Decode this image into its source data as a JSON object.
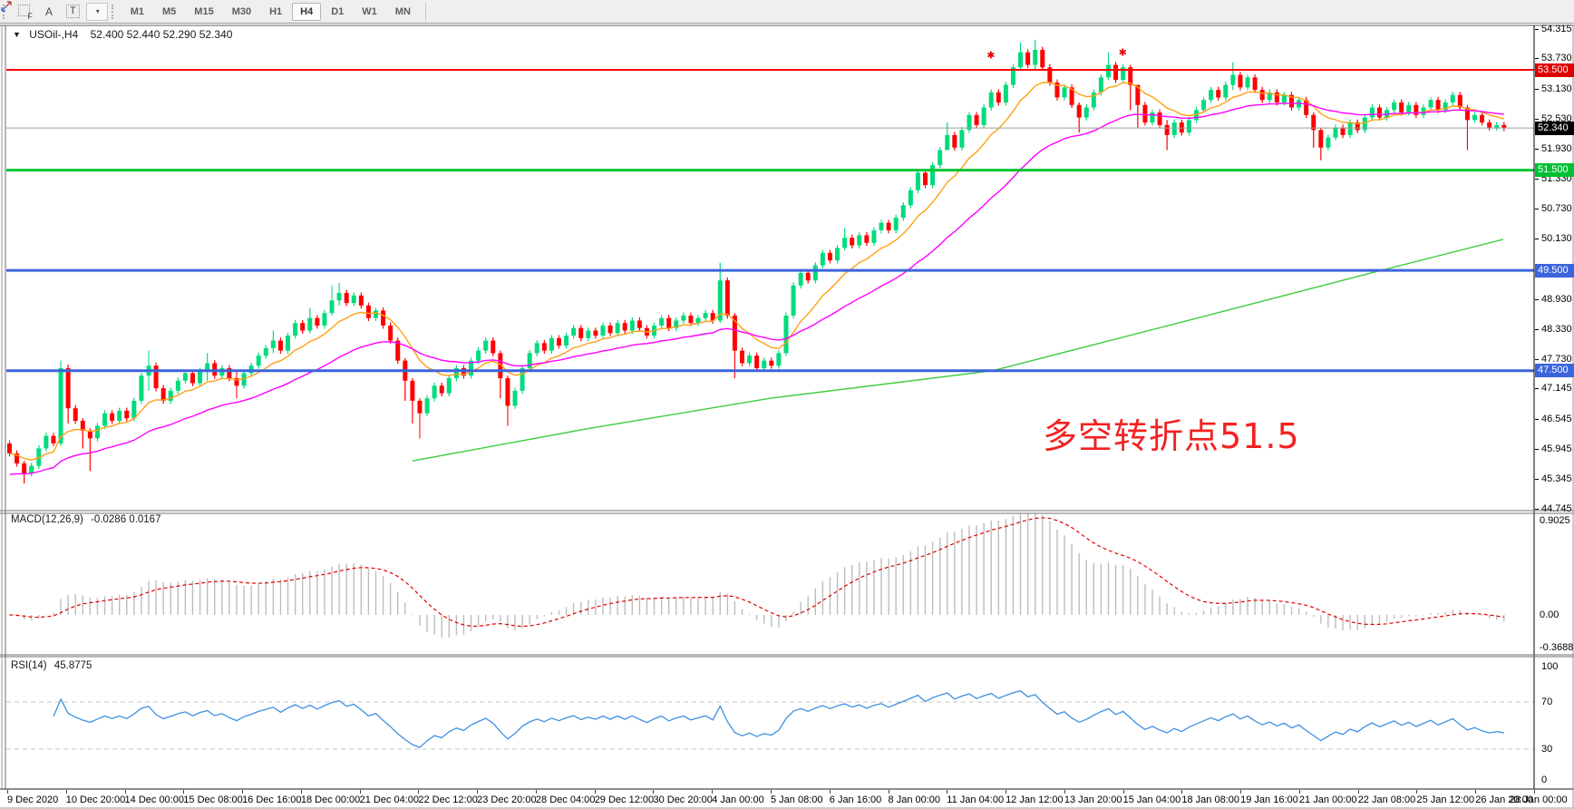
{
  "toolbar": {
    "tools": {
      "grid_label": "F",
      "a_label": "A",
      "t_label": "T",
      "arrows_caret": "▾"
    },
    "timeframes": [
      "M1",
      "M5",
      "M15",
      "M30",
      "H1",
      "H4",
      "D1",
      "W1",
      "MN"
    ],
    "active": "H4"
  },
  "chart": {
    "collapse_icon": "▼",
    "symbol_period": "USOil-,H4",
    "quotes": "52.400 52.440 52.290 52.340",
    "levels": [
      {
        "price": 53.5,
        "color": "#FF0000",
        "w": 2
      },
      {
        "price": 51.5,
        "color": "#00C432",
        "w": 3
      },
      {
        "price": 49.5,
        "color": "#3C64DC",
        "w": 3
      },
      {
        "price": 47.5,
        "color": "#3C64DC",
        "w": 3
      }
    ],
    "current_price": {
      "price": 52.34,
      "color": "#9A9A9A"
    }
  },
  "annotation": {
    "text": "多空转折点51.5",
    "color": "#F42121"
  },
  "price_axis": {
    "ticks": [
      54.315,
      53.73,
      53.13,
      52.53,
      51.93,
      51.33,
      50.73,
      50.13,
      48.93,
      48.33,
      47.73,
      47.145,
      46.545,
      45.945,
      45.345,
      44.745
    ],
    "badges": [
      {
        "label": "53.500",
        "price": 53.5,
        "bg": "#DF0000"
      },
      {
        "label": "52.340",
        "price": 52.34,
        "bg": "#000000"
      },
      {
        "label": "51.500",
        "price": 51.5,
        "bg": "#00C034"
      },
      {
        "label": "49.500",
        "price": 49.5,
        "bg": "#3C64DC"
      },
      {
        "label": "47.500",
        "price": 47.5,
        "bg": "#3C64DC"
      }
    ]
  },
  "macd": {
    "label": "MACD(12,26,9)",
    "values": "-0.0286 0.0167",
    "axis": [
      {
        "label": "0.9025",
        "v": 0.9025
      },
      {
        "label": "0.00",
        "v": 0
      },
      {
        "label": "-0.3688",
        "v": -0.3688
      }
    ],
    "fast": 12,
    "slow": 26,
    "signal": 9,
    "hist_color": "#BDBDBD",
    "signal_color": "#E00000"
  },
  "rsi": {
    "label": "RSI(14)",
    "value": "45.8775",
    "period": 14,
    "axis": [
      {
        "label": "100",
        "v": 100
      },
      {
        "label": "70",
        "v": 70
      },
      {
        "label": "30",
        "v": 30
      },
      {
        "label": "0",
        "v": 0
      }
    ],
    "dashed_levels": [
      70,
      30
    ],
    "line_color": "#3E90E0",
    "dash_color": "#C4C4C4"
  },
  "date_axis": [
    "9 Dec 2020",
    "10 Dec 20:00",
    "14 Dec 00:00",
    "15 Dec 08:00",
    "16 Dec 16:00",
    "18 Dec 00:00",
    "21 Dec 04:00",
    "22 Dec 12:00",
    "23 Dec 20:00",
    "28 Dec 04:00",
    "29 Dec 12:00",
    "30 Dec 20:00",
    "4 Jan 00:00",
    "5 Jan 08:00",
    "6 Jan 16:00",
    "8 Jan 00:00",
    "11 Jan 04:00",
    "12 Jan 12:00",
    "13 Jan 20:00",
    "15 Jan 04:00",
    "18 Jan 08:00",
    "19 Jan 16:00",
    "21 Jan 00:00",
    "22 Jan 08:00",
    "25 Jan 12:00",
    "26 Jan 20:00",
    "28 Jan 00:00"
  ],
  "chart_data": {
    "type": "candlestick",
    "symbol": "USOil",
    "timeframe": "H4",
    "ohlc_quote": {
      "open": 52.4,
      "high": 52.44,
      "low": 52.29,
      "close": 52.34
    },
    "y_axis_range": [
      44.745,
      54.315
    ],
    "bull_color": "#00DC7C",
    "bear_color": "#FF0000",
    "first_open": 46.05,
    "closes": [
      45.85,
      45.65,
      45.45,
      45.6,
      45.95,
      46.2,
      46.05,
      47.55,
      46.75,
      46.5,
      46.3,
      46.15,
      46.4,
      46.65,
      46.5,
      46.7,
      46.55,
      46.9,
      47.4,
      47.6,
      47.15,
      46.9,
      47.1,
      47.3,
      47.45,
      47.25,
      47.5,
      47.65,
      47.4,
      47.55,
      47.35,
      47.2,
      47.45,
      47.6,
      47.8,
      47.95,
      48.1,
      47.9,
      48.2,
      48.45,
      48.3,
      48.55,
      48.4,
      48.65,
      48.9,
      49.05,
      48.85,
      49.0,
      48.8,
      48.55,
      48.7,
      48.4,
      48.1,
      47.7,
      47.3,
      46.9,
      46.65,
      46.95,
      47.2,
      47.05,
      47.35,
      47.55,
      47.4,
      47.7,
      47.9,
      48.1,
      47.85,
      47.35,
      46.8,
      47.1,
      47.55,
      47.85,
      48.05,
      47.9,
      48.15,
      48.0,
      48.2,
      48.35,
      48.15,
      48.3,
      48.2,
      48.4,
      48.25,
      48.45,
      48.3,
      48.5,
      48.35,
      48.2,
      48.4,
      48.55,
      48.35,
      48.5,
      48.6,
      48.45,
      48.55,
      48.65,
      48.5,
      49.3,
      48.6,
      47.9,
      47.65,
      47.8,
      47.55,
      47.7,
      47.6,
      47.85,
      48.6,
      49.2,
      49.45,
      49.3,
      49.6,
      49.85,
      49.7,
      49.95,
      50.15,
      50.0,
      50.2,
      50.05,
      50.3,
      50.45,
      50.3,
      50.55,
      50.8,
      51.1,
      51.45,
      51.2,
      51.6,
      51.9,
      52.2,
      51.95,
      52.3,
      52.6,
      52.4,
      52.75,
      53.05,
      52.85,
      53.2,
      53.55,
      53.85,
      53.6,
      53.9,
      53.55,
      53.25,
      52.95,
      53.15,
      52.8,
      52.55,
      52.75,
      53.05,
      53.35,
      53.6,
      53.3,
      53.55,
      53.2,
      52.8,
      52.45,
      52.65,
      52.4,
      52.2,
      52.45,
      52.25,
      52.5,
      52.7,
      52.9,
      53.1,
      52.95,
      53.2,
      53.4,
      53.15,
      53.35,
      53.1,
      52.9,
      53.05,
      52.85,
      53.0,
      52.75,
      52.9,
      52.6,
      52.3,
      51.95,
      52.15,
      52.35,
      52.2,
      52.45,
      52.3,
      52.55,
      52.75,
      52.55,
      52.7,
      52.85,
      52.65,
      52.8,
      52.6,
      52.75,
      52.9,
      52.7,
      52.85,
      53.0,
      52.75,
      52.5,
      52.6,
      52.45,
      52.35,
      52.4,
      52.34
    ],
    "wick_overrides": {
      "2": [
        45.7,
        45.25
      ],
      "7": [
        47.7,
        46.0
      ],
      "8": [
        47.62,
        46.45
      ],
      "10": [
        46.55,
        45.95
      ],
      "11": [
        46.35,
        45.5
      ],
      "19": [
        47.9,
        47.1
      ],
      "27": [
        47.85,
        47.3
      ],
      "31": [
        47.5,
        46.95
      ],
      "36": [
        48.3,
        47.85
      ],
      "41": [
        48.75,
        48.25
      ],
      "44": [
        49.2,
        48.6
      ],
      "45": [
        49.25,
        48.8
      ],
      "54": [
        47.75,
        46.9
      ],
      "55": [
        47.35,
        46.45
      ],
      "56": [
        46.95,
        46.15
      ],
      "67": [
        47.9,
        46.95
      ],
      "68": [
        47.4,
        46.4
      ],
      "97": [
        49.65,
        48.45
      ],
      "99": [
        48.65,
        47.35
      ],
      "114": [
        50.35,
        49.9
      ],
      "128": [
        52.45,
        51.9
      ],
      "138": [
        54.05,
        53.5
      ],
      "140": [
        54.1,
        53.5
      ],
      "146": [
        52.85,
        52.25
      ],
      "150": [
        53.85,
        53.3
      ],
      "153": [
        53.6,
        52.7
      ],
      "154": [
        52.85,
        52.35
      ],
      "158": [
        52.5,
        51.9
      ],
      "167": [
        53.65,
        53.1
      ],
      "178": [
        52.65,
        51.95
      ],
      "179": [
        52.35,
        51.7
      ],
      "199": [
        52.8,
        51.9
      ]
    },
    "moving_averages": {
      "fast": {
        "period": 10,
        "color": "#FFA014"
      },
      "mid": {
        "period": 30,
        "color": "#FF00FF",
        "seed": 45.4
      },
      "slow_keypoints": {
        "color": "#3FCC3F",
        "points": [
          [
            455,
            45.7
          ],
          [
            650,
            46.35
          ],
          [
            850,
            46.95
          ],
          [
            1095,
            47.5
          ],
          [
            1310,
            48.5
          ],
          [
            1523,
            49.5
          ],
          [
            1658,
            50.12
          ]
        ]
      }
    },
    "markers": [
      {
        "index": 134,
        "price": 53.8,
        "glyph": "✱",
        "color": "#E00000"
      },
      {
        "index": 152,
        "price": 53.85,
        "glyph": "✱",
        "color": "#E00000"
      }
    ]
  }
}
